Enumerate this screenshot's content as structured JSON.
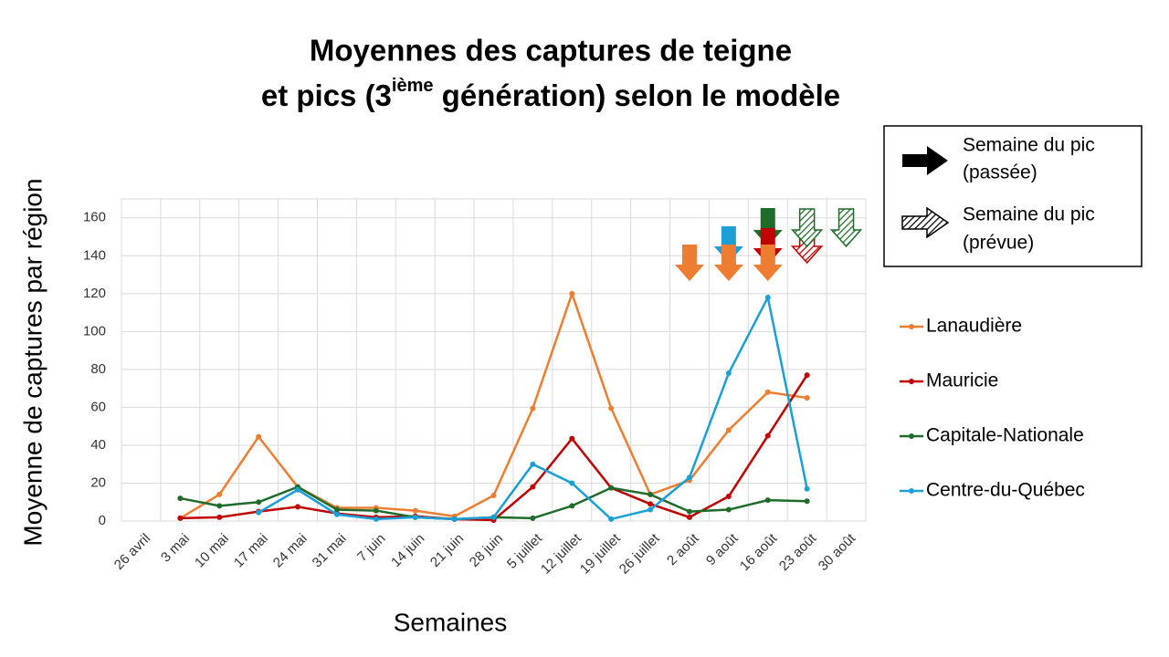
{
  "chart_data": {
    "type": "line",
    "title": [
      "Moyennes des captures de teigne",
      [
        "et pics (3",
        "ième",
        " génération) selon le modèle"
      ]
    ],
    "x_label": "Semaines",
    "y_label": "Moyenne de captures par région",
    "categories": [
      "26 avril",
      "3 mai",
      "10 mai",
      "17 mai",
      "24 mai",
      "31 mai",
      "7 juin",
      "14 juin",
      "21 juin",
      "28 juin",
      "5 juillet",
      "12 juillet",
      "19 juillet",
      "26 juillet",
      "2 août",
      "9 août",
      "16 août",
      "23 août",
      "30 août"
    ],
    "series": [
      {
        "name": "Lanaudière",
        "color": "#ed7d31",
        "values": [
          null,
          1.5,
          14,
          44.5,
          18,
          7,
          7,
          5.5,
          2.5,
          13.5,
          59.5,
          120,
          59.5,
          14,
          21.5,
          48,
          68,
          65,
          null
        ]
      },
      {
        "name": "Mauricie",
        "color": "#c00000",
        "values": [
          null,
          1.5,
          2,
          5,
          7.5,
          4,
          2,
          2.5,
          1,
          0.5,
          18,
          43.5,
          17.5,
          9,
          2,
          13,
          45,
          77,
          null
        ]
      },
      {
        "name": "Capitale-Nationale",
        "color": "#1e6b2a",
        "values": [
          null,
          12,
          8,
          10,
          18,
          6,
          5.5,
          2,
          1,
          2,
          1.5,
          8,
          17.5,
          14,
          5,
          6,
          11,
          10.5,
          null
        ]
      },
      {
        "name": "Centre-du-Québec",
        "color": "#1a9fd6",
        "values": [
          null,
          null,
          null,
          4.5,
          16.5,
          3.5,
          1,
          2,
          1,
          2,
          30,
          20,
          1,
          6,
          23,
          78,
          118,
          17,
          null
        ]
      }
    ],
    "ylim": [
      0,
      170
    ],
    "yticks": [
      0,
      20,
      40,
      60,
      80,
      100,
      120,
      140,
      160
    ],
    "grid": true,
    "legend": "right",
    "peak_legend": [
      {
        "lines": [
          "Semaine du pic",
          "(passée)"
        ]
      },
      {
        "lines": [
          "Semaine du pic",
          "(prévue)"
        ]
      }
    ]
  }
}
